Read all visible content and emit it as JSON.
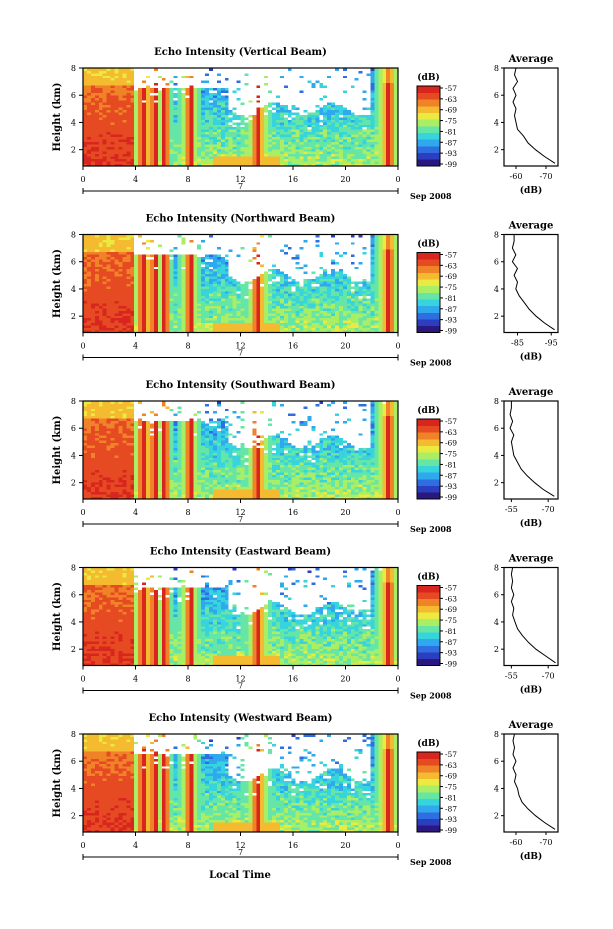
{
  "figure": {
    "date_label": "Sep 2008",
    "day_label": "7",
    "xlabel": "Local Time"
  },
  "colors": {
    "colorbar": [
      "#2a1880",
      "#2c3ec0",
      "#2f6ee0",
      "#30a8ee",
      "#38d4de",
      "#66e6a6",
      "#aaee66",
      "#eaea40",
      "#f4ba30",
      "#f08228",
      "#e64a22",
      "#d8261e"
    ],
    "missing": "#ffffff"
  },
  "chart_data": [
    {
      "type": "heatmap",
      "title": "Echo Intensity (Vertical Beam)",
      "xlabel": "",
      "ylabel": "Height (km)",
      "xlim": [
        0,
        24
      ],
      "ylim": [
        0.8,
        8
      ],
      "xticks": [
        "0",
        "4",
        "8",
        "12",
        "16",
        "20",
        "0"
      ],
      "yticks": [
        "2",
        "4",
        "6",
        "8"
      ],
      "colorbar": {
        "label": "(dB)",
        "ticks": [
          "-57",
          "-63",
          "-69",
          "-75",
          "-81",
          "-87",
          "-93",
          "-99"
        ]
      },
      "average": {
        "title": "Average",
        "xlabel": "(dB)",
        "xticks": [
          "-60",
          "-70"
        ],
        "xlim": [
          -56,
          -74
        ],
        "ylim": [
          0.8,
          8
        ],
        "yticks": [
          "2",
          "4",
          "6",
          "8"
        ],
        "y": [
          1.0,
          1.5,
          2.0,
          2.5,
          3.0,
          3.5,
          4.0,
          4.5,
          5.0,
          5.5,
          6.0,
          6.5,
          7.0,
          7.5,
          8.0
        ],
        "x": [
          -73.0,
          -69.5,
          -66.5,
          -64.0,
          -62.5,
          -60.5,
          -60.0,
          -59.5,
          -60.0,
          -59.0,
          -60.0,
          -59.0,
          -60.5,
          -59.5,
          -60.0
        ]
      }
    },
    {
      "type": "heatmap",
      "title": "Echo Intensity (Northward Beam)",
      "xlabel": "",
      "ylabel": "Height (km)",
      "xlim": [
        0,
        24
      ],
      "ylim": [
        0.8,
        8
      ],
      "xticks": [
        "0",
        "4",
        "8",
        "12",
        "16",
        "20",
        "0"
      ],
      "yticks": [
        "2",
        "4",
        "6",
        "8"
      ],
      "colorbar": {
        "label": "(dB)",
        "ticks": [
          "-57",
          "-63",
          "-69",
          "-75",
          "-81",
          "-87",
          "-93",
          "-99"
        ]
      },
      "average": {
        "title": "Average",
        "xlabel": "(dB)",
        "xticks": [
          "-85",
          "-95"
        ],
        "xlim": [
          -81,
          -97
        ],
        "ylim": [
          0.8,
          8
        ],
        "yticks": [
          "2",
          "4",
          "6",
          "8"
        ],
        "y": [
          1.0,
          1.5,
          2.0,
          2.5,
          3.0,
          3.5,
          4.0,
          4.5,
          5.0,
          5.5,
          6.0,
          6.5,
          7.0,
          7.5,
          8.0
        ],
        "x": [
          -96.0,
          -93.0,
          -90.5,
          -88.5,
          -87.0,
          -85.5,
          -84.5,
          -85.0,
          -84.0,
          -85.0,
          -83.5,
          -84.5,
          -83.5,
          -84.0,
          -84.0
        ]
      }
    },
    {
      "type": "heatmap",
      "title": "Echo Intensity (Southward Beam)",
      "xlabel": "",
      "ylabel": "Height (km)",
      "xlim": [
        0,
        24
      ],
      "ylim": [
        0.8,
        8
      ],
      "xticks": [
        "0",
        "4",
        "8",
        "12",
        "16",
        "20",
        "0"
      ],
      "yticks": [
        "2",
        "4",
        "6",
        "8"
      ],
      "colorbar": {
        "label": "(dB)",
        "ticks": [
          "-57",
          "-63",
          "-69",
          "-75",
          "-81",
          "-87",
          "-93",
          "-99"
        ]
      },
      "average": {
        "title": "Average",
        "xlabel": "(dB)",
        "xticks": [
          "-55",
          "-70"
        ],
        "xlim": [
          -52,
          -74
        ],
        "ylim": [
          0.8,
          8
        ],
        "yticks": [
          "2",
          "4",
          "6",
          "8"
        ],
        "y": [
          1.0,
          1.5,
          2.0,
          2.5,
          3.0,
          3.5,
          4.0,
          4.5,
          5.0,
          5.5,
          6.0,
          6.5,
          7.0,
          7.5,
          8.0
        ],
        "x": [
          -72.5,
          -68.0,
          -64.5,
          -61.5,
          -59.0,
          -57.5,
          -56.0,
          -55.5,
          -55.0,
          -56.0,
          -54.5,
          -55.5,
          -54.5,
          -55.0,
          -55.0
        ]
      }
    },
    {
      "type": "heatmap",
      "title": "Echo Intensity (Eastward Beam)",
      "xlabel": "",
      "ylabel": "Height (km)",
      "xlim": [
        0,
        24
      ],
      "ylim": [
        0.8,
        8
      ],
      "xticks": [
        "0",
        "4",
        "8",
        "12",
        "16",
        "20",
        "0"
      ],
      "yticks": [
        "2",
        "4",
        "6",
        "8"
      ],
      "colorbar": {
        "label": "(dB)",
        "ticks": [
          "-57",
          "-63",
          "-69",
          "-75",
          "-81",
          "-87",
          "-93",
          "-99"
        ]
      },
      "average": {
        "title": "Average",
        "xlabel": "(dB)",
        "xticks": [
          "-55",
          "-70"
        ],
        "xlim": [
          -52,
          -74
        ],
        "ylim": [
          0.8,
          8
        ],
        "yticks": [
          "2",
          "4",
          "6",
          "8"
        ],
        "y": [
          1.0,
          1.5,
          2.0,
          2.5,
          3.0,
          3.5,
          4.0,
          4.5,
          5.0,
          5.5,
          6.0,
          6.5,
          7.0,
          7.5,
          8.0
        ],
        "x": [
          -73.0,
          -69.0,
          -65.0,
          -62.0,
          -59.5,
          -57.5,
          -56.5,
          -55.5,
          -56.0,
          -55.0,
          -56.0,
          -55.0,
          -55.5,
          -55.0,
          -55.5
        ]
      }
    },
    {
      "type": "heatmap",
      "title": "Echo Intensity (Westward Beam)",
      "xlabel": "Local Time",
      "ylabel": "Height (km)",
      "xlim": [
        0,
        24
      ],
      "ylim": [
        0.8,
        8
      ],
      "xticks": [
        "0",
        "4",
        "8",
        "12",
        "16",
        "20",
        "0"
      ],
      "yticks": [
        "2",
        "4",
        "6",
        "8"
      ],
      "colorbar": {
        "label": "(dB)",
        "ticks": [
          "-57",
          "-63",
          "-69",
          "-75",
          "-81",
          "-87",
          "-93",
          "-99"
        ]
      },
      "average": {
        "title": "Average",
        "xlabel": "(dB)",
        "xticks": [
          "-60",
          "-70"
        ],
        "xlim": [
          -56,
          -74
        ],
        "ylim": [
          0.8,
          8
        ],
        "yticks": [
          "2",
          "4",
          "6",
          "8"
        ],
        "y": [
          1.0,
          1.5,
          2.0,
          2.5,
          3.0,
          3.5,
          4.0,
          4.5,
          5.0,
          5.5,
          6.0,
          6.5,
          7.0,
          7.5,
          8.0
        ],
        "x": [
          -73.0,
          -69.5,
          -66.5,
          -64.0,
          -62.0,
          -61.0,
          -60.5,
          -59.5,
          -60.0,
          -59.0,
          -60.0,
          -59.0,
          -59.5,
          -59.0,
          -59.5
        ]
      }
    }
  ]
}
